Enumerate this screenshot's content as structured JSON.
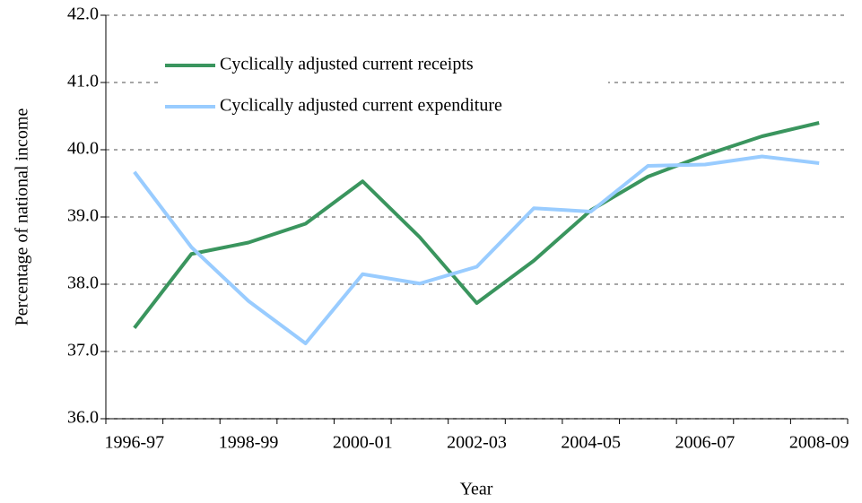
{
  "chart_data": {
    "type": "line",
    "x_label": "Year",
    "y_label": "Percentage of national income",
    "categories": [
      "1996-97",
      null,
      "1998-99",
      null,
      "2000-01",
      null,
      "2002-03",
      null,
      "2004-05",
      null,
      "2006-07",
      null,
      "2008-09"
    ],
    "series": [
      {
        "name": "Cyclically adjusted current receipts",
        "color": "#3a955e",
        "values": [
          37.35,
          38.45,
          38.62,
          38.9,
          39.53,
          38.7,
          37.72,
          38.35,
          39.1,
          39.6,
          39.92,
          40.2,
          40.4
        ]
      },
      {
        "name": "Cyclically adjusted current expenditure",
        "color": "#99ccff",
        "values": [
          39.67,
          38.55,
          37.75,
          37.12,
          38.15,
          38.01,
          38.26,
          39.13,
          39.08,
          39.76,
          39.78,
          39.9,
          39.8
        ]
      }
    ],
    "ylim": [
      36,
      42
    ],
    "yticks": [
      {
        "value": 36,
        "label": "36.0"
      },
      {
        "value": 37,
        "label": "37.0"
      },
      {
        "value": 38,
        "label": "38.0"
      },
      {
        "value": 39,
        "label": "39.0"
      },
      {
        "value": 40,
        "label": "40.0"
      },
      {
        "value": 41,
        "label": "41.0"
      },
      {
        "value": 42,
        "label": "42.0"
      }
    ],
    "grid": true,
    "legend": "upper left"
  }
}
